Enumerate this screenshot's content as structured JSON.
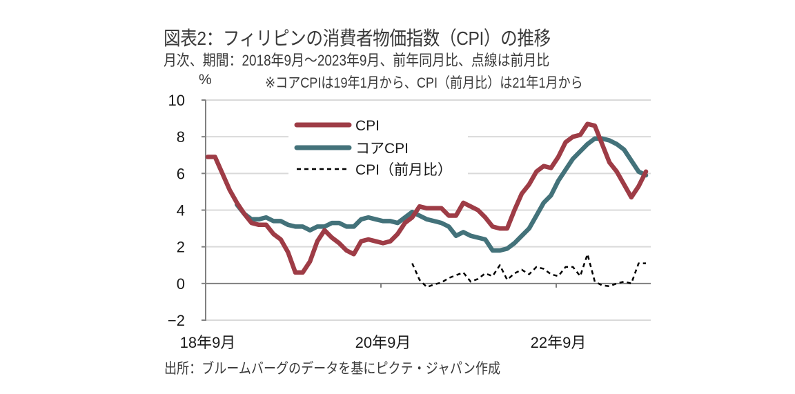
{
  "header": {
    "title": "図表2：フィリピンの消費者物価指数（CPI）の推移",
    "subtitle": "月次、期間：2018年9月～2023年9月、前年同月比、点線は前月比",
    "unit": "%",
    "note": "※コアCPIは19年1月から、CPI（前月比）は21年1月から"
  },
  "footer": {
    "source": "出所：ブルームバーグのデータを基にピクテ・ジャパン作成"
  },
  "chart_data": {
    "type": "line",
    "title": "図表2：フィリピンの消費者物価指数（CPI）の推移",
    "xlabel": "",
    "ylabel": "%",
    "ylim": [
      -2,
      10
    ],
    "yticks": [
      -2,
      0,
      2,
      4,
      6,
      8,
      10
    ],
    "ytick_labels": [
      "−2",
      "0",
      "2",
      "4",
      "6",
      "8",
      "10"
    ],
    "x_start": "2018-09",
    "x_end": "2023-09",
    "x_count": 61,
    "xtick_labels": [
      {
        "index": 0,
        "label": "18年9月"
      },
      {
        "index": 24,
        "label": "20年9月"
      },
      {
        "index": 48,
        "label": "22年9月"
      }
    ],
    "grid": true,
    "legend_position": "top-left-inside",
    "series": [
      {
        "name": "CPI",
        "style": "solid",
        "color": "#9e3c46",
        "start_index": 0,
        "values": [
          6.9,
          6.9,
          6.0,
          5.1,
          4.4,
          3.8,
          3.3,
          3.2,
          3.2,
          2.7,
          2.4,
          1.7,
          0.6,
          0.6,
          1.2,
          2.3,
          2.9,
          2.5,
          2.2,
          1.8,
          1.6,
          2.3,
          2.4,
          2.3,
          2.2,
          2.3,
          2.7,
          3.3,
          3.6,
          4.2,
          4.1,
          4.1,
          4.1,
          3.7,
          3.7,
          4.4,
          4.2,
          4.0,
          3.6,
          3.1,
          3.0,
          3.0,
          4.0,
          4.9,
          5.4,
          6.1,
          6.4,
          6.3,
          6.9,
          7.7,
          8.0,
          8.1,
          8.7,
          8.6,
          7.6,
          6.6,
          6.1,
          5.4,
          4.7,
          5.3,
          6.1
        ]
      },
      {
        "name": "コアCPI",
        "style": "solid",
        "color": "#43727a",
        "start_index": 4,
        "values": [
          4.3,
          3.8,
          3.5,
          3.5,
          3.6,
          3.4,
          3.4,
          3.2,
          3.1,
          3.1,
          2.9,
          3.1,
          3.1,
          3.3,
          3.3,
          3.1,
          3.1,
          3.5,
          3.6,
          3.5,
          3.4,
          3.4,
          3.3,
          3.6,
          3.9,
          3.7,
          3.5,
          3.4,
          3.3,
          3.1,
          2.6,
          2.8,
          2.6,
          2.5,
          2.4,
          1.8,
          1.8,
          1.9,
          2.2,
          2.6,
          3.0,
          3.7,
          4.4,
          4.8,
          5.6,
          6.2,
          6.8,
          7.2,
          7.6,
          7.9,
          7.9,
          7.8,
          7.6,
          7.3,
          6.7,
          6.1,
          5.9
        ]
      },
      {
        "name": "CPI（前月比）",
        "style": "dashed",
        "color": "#000000",
        "start_index": 28,
        "values": [
          1.1,
          0.2,
          -0.2,
          -0.05,
          0.05,
          0.3,
          0.45,
          0.6,
          0.1,
          0.25,
          0.55,
          0.4,
          1.0,
          0.2,
          0.55,
          0.75,
          0.5,
          0.9,
          0.8,
          0.5,
          0.4,
          0.9,
          0.9,
          0.4,
          1.6,
          0.1,
          -0.1,
          -0.15,
          0.0,
          0.1,
          0.0,
          1.1,
          1.1
        ]
      }
    ]
  }
}
